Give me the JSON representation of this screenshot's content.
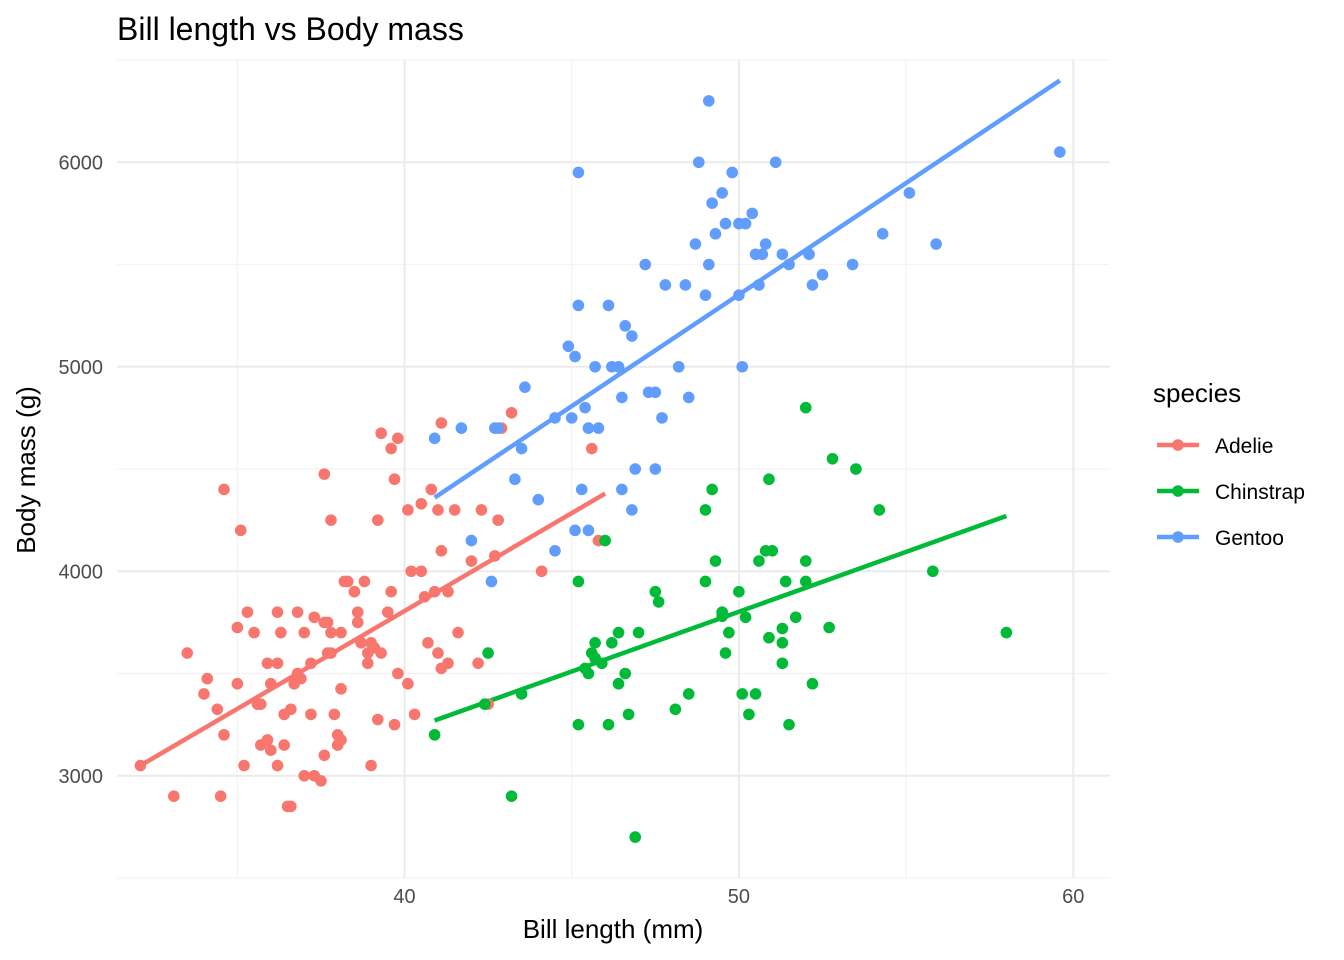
{
  "chart_data": {
    "type": "scatter",
    "title": "Bill length vs Body mass",
    "xlabel": "Bill length (mm)",
    "ylabel": "Body mass (g)",
    "xlim": [
      31.4,
      61.1
    ],
    "ylim": [
      2500,
      6500
    ],
    "x_ticks": [
      40,
      50,
      60
    ],
    "y_ticks": [
      3000,
      4000,
      5000,
      6000
    ],
    "grid": true,
    "legend": {
      "title": "species",
      "position": "right"
    },
    "series": [
      {
        "name": "Adelie",
        "color": "#F8766D",
        "trend": {
          "x": [
            32.1,
            46.0
          ],
          "y": [
            3050,
            4380
          ]
        },
        "points": [
          [
            32.1,
            3050
          ],
          [
            33.1,
            2900
          ],
          [
            33.5,
            3600
          ],
          [
            34.0,
            3400
          ],
          [
            34.1,
            3475
          ],
          [
            34.4,
            3325
          ],
          [
            34.5,
            2900
          ],
          [
            34.6,
            3200
          ],
          [
            34.6,
            4400
          ],
          [
            35.0,
            3450
          ],
          [
            35.0,
            3725
          ],
          [
            35.1,
            4200
          ],
          [
            35.2,
            3050
          ],
          [
            35.3,
            3800
          ],
          [
            35.5,
            3700
          ],
          [
            35.6,
            3350
          ],
          [
            35.7,
            3350
          ],
          [
            35.7,
            3150
          ],
          [
            35.9,
            3550
          ],
          [
            35.9,
            3175
          ],
          [
            36.0,
            3450
          ],
          [
            36.0,
            3125
          ],
          [
            36.2,
            3800
          ],
          [
            36.2,
            3050
          ],
          [
            36.2,
            3550
          ],
          [
            36.3,
            3700
          ],
          [
            36.4,
            3150
          ],
          [
            36.4,
            3300
          ],
          [
            36.5,
            2850
          ],
          [
            36.6,
            3325
          ],
          [
            36.6,
            2850
          ],
          [
            36.7,
            3450
          ],
          [
            36.8,
            3500
          ],
          [
            36.8,
            3800
          ],
          [
            36.9,
            3475
          ],
          [
            37.0,
            3700
          ],
          [
            37.0,
            3000
          ],
          [
            37.2,
            3550
          ],
          [
            37.2,
            3300
          ],
          [
            37.3,
            3775
          ],
          [
            37.3,
            3000
          ],
          [
            37.5,
            2975
          ],
          [
            37.6,
            3100
          ],
          [
            37.6,
            3750
          ],
          [
            37.6,
            4475
          ],
          [
            37.7,
            3600
          ],
          [
            37.7,
            3750
          ],
          [
            37.8,
            3600
          ],
          [
            37.8,
            3700
          ],
          [
            37.8,
            4250
          ],
          [
            37.9,
            3300
          ],
          [
            38.0,
            3150
          ],
          [
            38.0,
            3200
          ],
          [
            38.1,
            3175
          ],
          [
            38.1,
            3700
          ],
          [
            38.1,
            3425
          ],
          [
            38.2,
            3950
          ],
          [
            38.3,
            3950
          ],
          [
            38.5,
            3900
          ],
          [
            38.6,
            3750
          ],
          [
            38.6,
            3800
          ],
          [
            38.7,
            3650
          ],
          [
            38.8,
            3950
          ],
          [
            38.9,
            3550
          ],
          [
            38.9,
            3600
          ],
          [
            39.0,
            3650
          ],
          [
            39.0,
            3050
          ],
          [
            39.1,
            3625
          ],
          [
            39.2,
            3275
          ],
          [
            39.2,
            4250
          ],
          [
            39.3,
            4675
          ],
          [
            39.3,
            3600
          ],
          [
            39.5,
            3800
          ],
          [
            39.6,
            3900
          ],
          [
            39.6,
            4600
          ],
          [
            39.7,
            3250
          ],
          [
            39.7,
            4450
          ],
          [
            39.8,
            3500
          ],
          [
            39.8,
            4650
          ],
          [
            40.1,
            3450
          ],
          [
            40.1,
            4300
          ],
          [
            40.2,
            4000
          ],
          [
            40.3,
            3300
          ],
          [
            40.5,
            4000
          ],
          [
            40.6,
            3875
          ],
          [
            40.7,
            3650
          ],
          [
            40.8,
            4400
          ],
          [
            40.9,
            3900
          ],
          [
            41.0,
            4300
          ],
          [
            41.1,
            3525
          ],
          [
            41.1,
            4725
          ],
          [
            41.1,
            4100
          ],
          [
            41.3,
            3550
          ],
          [
            41.5,
            4300
          ],
          [
            41.6,
            3700
          ],
          [
            42.0,
            4050
          ],
          [
            42.2,
            3550
          ],
          [
            42.3,
            4300
          ],
          [
            42.5,
            3350
          ],
          [
            42.7,
            4075
          ],
          [
            42.8,
            4250
          ],
          [
            42.9,
            4700
          ],
          [
            43.2,
            4775
          ],
          [
            44.1,
            4000
          ],
          [
            45.6,
            4600
          ],
          [
            45.8,
            4150
          ],
          [
            40.5,
            4330
          ],
          [
            41.3,
            3900
          ],
          [
            41.0,
            3600
          ]
        ]
      },
      {
        "name": "Chinstrap",
        "color": "#00BA38",
        "trend": {
          "x": [
            40.9,
            58.0
          ],
          "y": [
            3270,
            4270
          ]
        },
        "points": [
          [
            40.9,
            3200
          ],
          [
            42.4,
            3350
          ],
          [
            42.5,
            3600
          ],
          [
            43.2,
            2900
          ],
          [
            43.5,
            3400
          ],
          [
            45.2,
            3250
          ],
          [
            45.2,
            3950
          ],
          [
            45.4,
            3525
          ],
          [
            45.5,
            3500
          ],
          [
            45.6,
            3600
          ],
          [
            45.7,
            3650
          ],
          [
            45.7,
            3575
          ],
          [
            45.9,
            3550
          ],
          [
            46.0,
            4150
          ],
          [
            46.1,
            3250
          ],
          [
            46.2,
            3650
          ],
          [
            46.4,
            3700
          ],
          [
            46.4,
            3450
          ],
          [
            46.6,
            3500
          ],
          [
            46.7,
            3300
          ],
          [
            46.9,
            2700
          ],
          [
            47.0,
            3700
          ],
          [
            47.5,
            3900
          ],
          [
            47.6,
            3850
          ],
          [
            48.1,
            3325
          ],
          [
            48.5,
            3400
          ],
          [
            49.0,
            3950
          ],
          [
            49.0,
            4300
          ],
          [
            49.2,
            4400
          ],
          [
            49.3,
            4050
          ],
          [
            49.5,
            3800
          ],
          [
            49.6,
            3600
          ],
          [
            49.7,
            3700
          ],
          [
            50.0,
            3900
          ],
          [
            50.1,
            3400
          ],
          [
            50.2,
            3775
          ],
          [
            50.3,
            3300
          ],
          [
            50.5,
            3400
          ],
          [
            50.6,
            4050
          ],
          [
            50.8,
            4100
          ],
          [
            50.9,
            3675
          ],
          [
            50.9,
            4450
          ],
          [
            51.0,
            4100
          ],
          [
            51.3,
            3650
          ],
          [
            51.3,
            3550
          ],
          [
            51.4,
            3950
          ],
          [
            51.5,
            3250
          ],
          [
            51.7,
            3775
          ],
          [
            52.0,
            3950
          ],
          [
            52.0,
            4050
          ],
          [
            52.0,
            4800
          ],
          [
            52.2,
            3450
          ],
          [
            52.7,
            3725
          ],
          [
            52.8,
            4550
          ],
          [
            53.5,
            4500
          ],
          [
            54.2,
            4300
          ],
          [
            55.8,
            4000
          ],
          [
            58.0,
            3700
          ],
          [
            49.5,
            3780
          ],
          [
            51.3,
            3720
          ]
        ]
      },
      {
        "name": "Gentoo",
        "color": "#619CFF",
        "trend": {
          "x": [
            40.9,
            59.6
          ],
          "y": [
            4360,
            6400
          ]
        },
        "points": [
          [
            40.9,
            4650
          ],
          [
            41.7,
            4700
          ],
          [
            42.0,
            4150
          ],
          [
            42.6,
            3950
          ],
          [
            42.7,
            4700
          ],
          [
            42.8,
            4700
          ],
          [
            43.3,
            4450
          ],
          [
            43.5,
            4600
          ],
          [
            43.6,
            4900
          ],
          [
            44.0,
            4350
          ],
          [
            44.5,
            4100
          ],
          [
            44.9,
            5100
          ],
          [
            45.0,
            4750
          ],
          [
            45.1,
            5050
          ],
          [
            45.2,
            5300
          ],
          [
            45.2,
            5950
          ],
          [
            45.3,
            4400
          ],
          [
            45.4,
            4800
          ],
          [
            45.5,
            4700
          ],
          [
            45.5,
            4200
          ],
          [
            45.7,
            5000
          ],
          [
            45.8,
            4700
          ],
          [
            46.1,
            5300
          ],
          [
            46.2,
            5000
          ],
          [
            46.4,
            5000
          ],
          [
            46.5,
            4850
          ],
          [
            46.6,
            5200
          ],
          [
            46.8,
            5150
          ],
          [
            46.9,
            4500
          ],
          [
            47.2,
            5500
          ],
          [
            47.3,
            4875
          ],
          [
            47.5,
            4875
          ],
          [
            47.7,
            4750
          ],
          [
            47.8,
            5400
          ],
          [
            48.2,
            5000
          ],
          [
            48.4,
            5400
          ],
          [
            48.5,
            4850
          ],
          [
            48.7,
            5600
          ],
          [
            49.0,
            5350
          ],
          [
            49.1,
            5500
          ],
          [
            49.2,
            5800
          ],
          [
            49.3,
            5650
          ],
          [
            49.5,
            5850
          ],
          [
            49.6,
            5700
          ],
          [
            49.8,
            5950
          ],
          [
            50.0,
            5350
          ],
          [
            50.0,
            5700
          ],
          [
            50.1,
            5000
          ],
          [
            50.2,
            5700
          ],
          [
            50.4,
            5750
          ],
          [
            50.5,
            5550
          ],
          [
            50.6,
            5400
          ],
          [
            50.7,
            5550
          ],
          [
            50.8,
            5600
          ],
          [
            51.1,
            6000
          ],
          [
            51.3,
            5550
          ],
          [
            51.5,
            5500
          ],
          [
            52.1,
            5550
          ],
          [
            52.2,
            5400
          ],
          [
            52.5,
            5450
          ],
          [
            53.4,
            5500
          ],
          [
            54.3,
            5650
          ],
          [
            55.1,
            5850
          ],
          [
            55.9,
            5600
          ],
          [
            59.6,
            6050
          ],
          [
            49.1,
            6300
          ],
          [
            48.8,
            6000
          ],
          [
            45.1,
            4200
          ],
          [
            46.5,
            4400
          ],
          [
            44.5,
            4750
          ],
          [
            46.8,
            4300
          ],
          [
            47.5,
            4500
          ]
        ]
      }
    ]
  }
}
